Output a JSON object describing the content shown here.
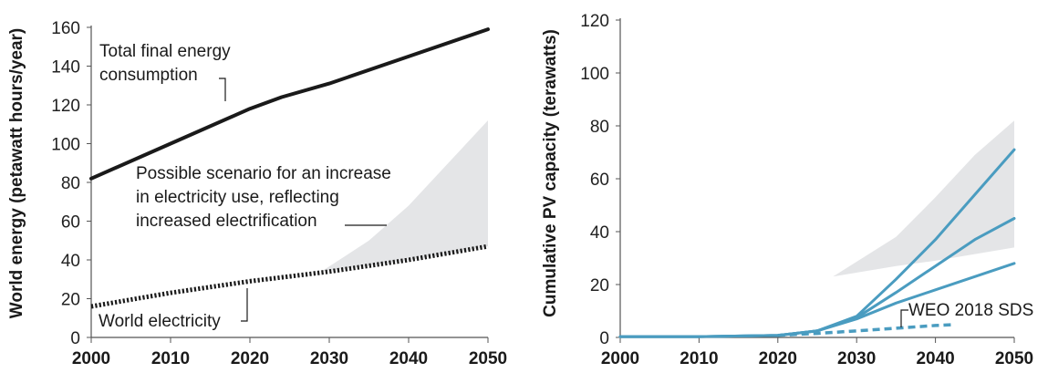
{
  "chart_data": [
    {
      "type": "line",
      "ylabel": "World energy (petawatt hours/year)",
      "xlim": [
        2000,
        2050
      ],
      "ylim": [
        0,
        160
      ],
      "x_ticks": [
        2000,
        2010,
        2020,
        2030,
        2040,
        2050
      ],
      "y_ticks": [
        0,
        20,
        40,
        60,
        80,
        100,
        120,
        140,
        160
      ],
      "series": [
        {
          "name": "Total final energy consumption",
          "style": "solid",
          "color": "#1a1a1a",
          "x": [
            2000,
            2010,
            2020,
            2024,
            2030,
            2040,
            2050
          ],
          "y": [
            82,
            100,
            118,
            124,
            131,
            145,
            159
          ]
        },
        {
          "name": "World electricity",
          "style": "dotted",
          "color": "#1a1a1a",
          "x": [
            2000,
            2010,
            2020,
            2030,
            2040,
            2050
          ],
          "y": [
            16,
            23,
            29,
            34,
            40,
            47
          ]
        }
      ],
      "band": {
        "name": "Possible scenario for an increase in electricity use, reflecting increased electrification",
        "color": "#e4e5e7",
        "x": [
          2029,
          2035,
          2040,
          2045,
          2050
        ],
        "lower": [
          34,
          37,
          40,
          43,
          47
        ],
        "upper": [
          34,
          50,
          68,
          90,
          112
        ]
      },
      "annotations": [
        {
          "lines": [
            "Total final energy",
            "consumption"
          ],
          "target": [
            2017,
            111
          ]
        },
        {
          "lines": [
            "Possible scenario for an increase",
            "in electricity use, reflecting",
            "increased electrification"
          ],
          "target": [
            2043,
            38
          ]
        },
        {
          "lines": [
            "World electricity"
          ],
          "target": [
            2019,
            28
          ]
        }
      ]
    },
    {
      "type": "line",
      "ylabel": "Cumulative PV capacity (terawatts)",
      "xlim": [
        2000,
        2050
      ],
      "ylim": [
        0,
        120
      ],
      "x_ticks": [
        2000,
        2010,
        2020,
        2030,
        2040,
        2050
      ],
      "y_ticks": [
        0,
        20,
        40,
        60,
        80,
        100,
        120
      ],
      "band": {
        "color": "#e4e5e7",
        "x": [
          2027,
          2035,
          2040,
          2045,
          2050
        ],
        "lower": [
          23,
          27,
          29,
          31.5,
          34
        ],
        "upper": [
          23,
          38,
          53,
          69,
          82
        ]
      },
      "series": [
        {
          "name": "",
          "style": "solid",
          "color": "#4a9cc0",
          "x": [
            2000,
            2010,
            2020,
            2025,
            2030,
            2035,
            2040,
            2045,
            2050
          ],
          "y": [
            0.3,
            0.3,
            0.8,
            2.5,
            8,
            22,
            37,
            54,
            71
          ]
        },
        {
          "name": "",
          "style": "solid",
          "color": "#4a9cc0",
          "x": [
            2000,
            2010,
            2020,
            2025,
            2030,
            2035,
            2040,
            2045,
            2050
          ],
          "y": [
            0.3,
            0.3,
            0.8,
            2.5,
            7.5,
            17,
            27,
            37,
            45
          ]
        },
        {
          "name": "",
          "style": "solid",
          "color": "#4a9cc0",
          "x": [
            2000,
            2010,
            2020,
            2025,
            2030,
            2035,
            2040,
            2045,
            2050
          ],
          "y": [
            0.3,
            0.3,
            0.8,
            2.5,
            7,
            13,
            18,
            23,
            28
          ]
        },
        {
          "name": "WEO 2018 SDS",
          "style": "dashed",
          "color": "#4a9cc0",
          "x": [
            2020,
            2025,
            2030,
            2035,
            2040,
            2042
          ],
          "y": [
            0.8,
            1.5,
            2.5,
            3.5,
            4.5,
            4.8
          ]
        }
      ],
      "annotations": [
        {
          "lines": [
            "WEO 2018 SDS"
          ],
          "target": [
            2036,
            3.8
          ]
        }
      ]
    }
  ]
}
